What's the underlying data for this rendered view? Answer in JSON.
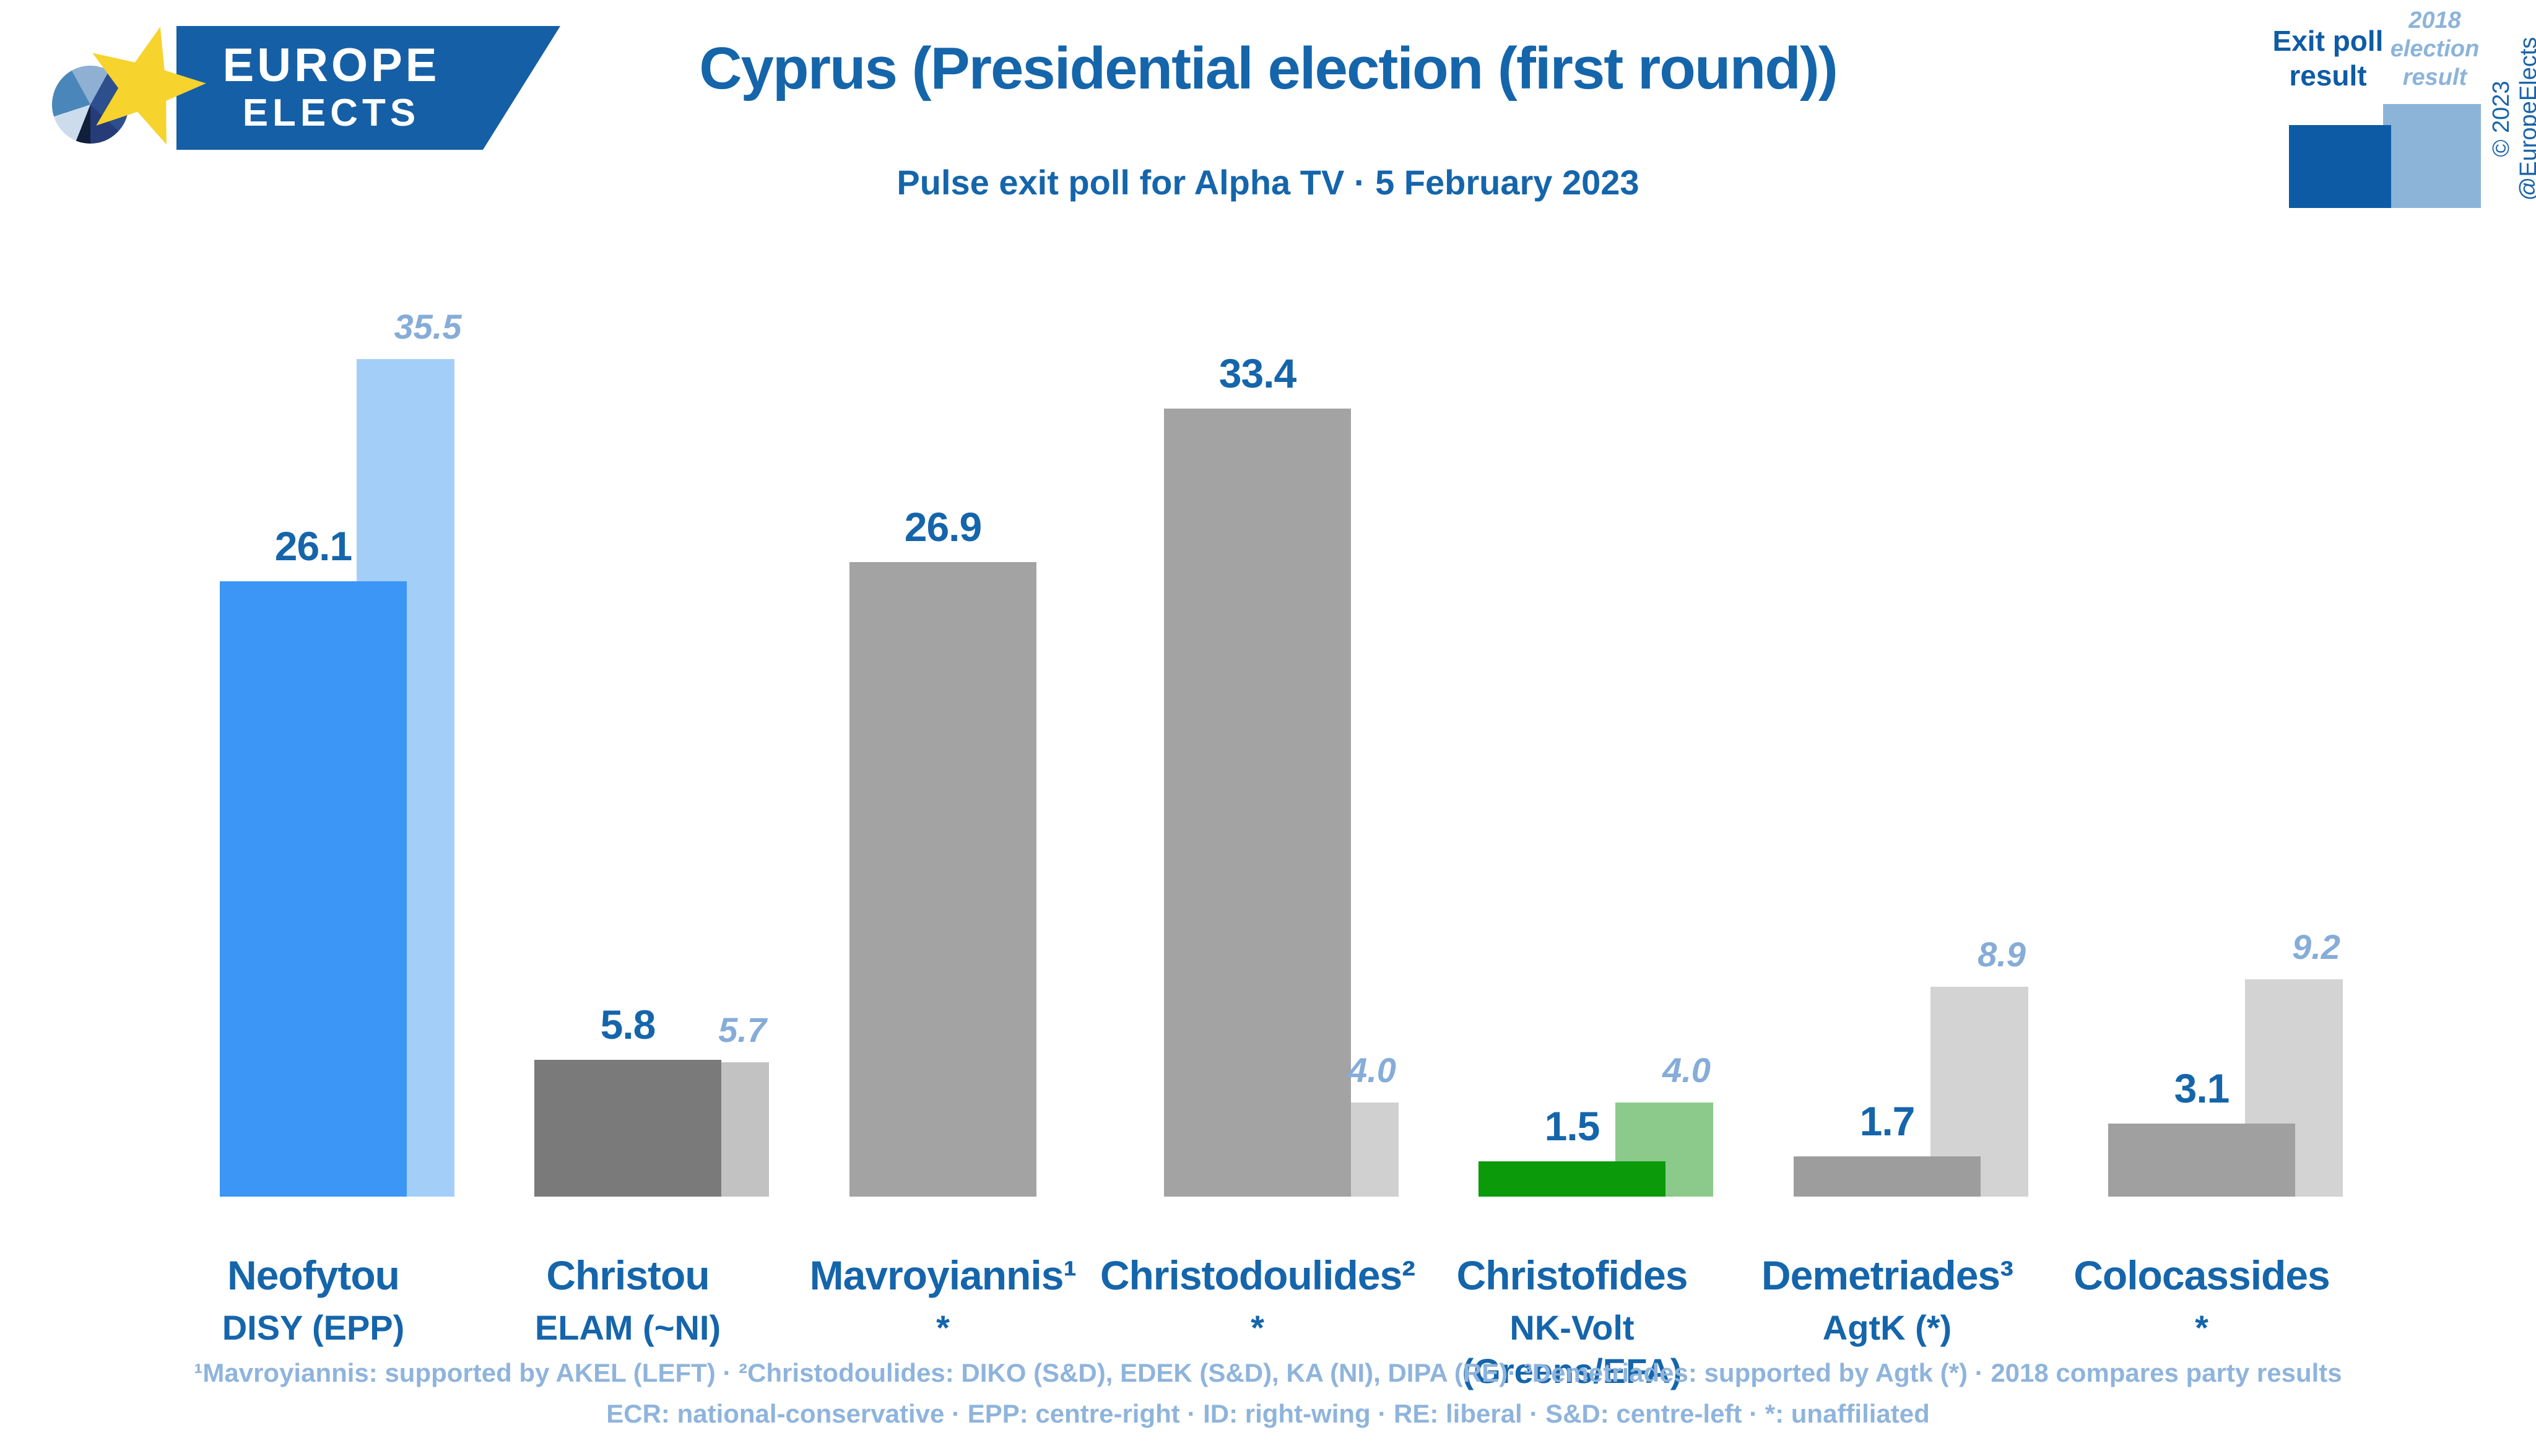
{
  "logo": {
    "name_line1": "EUROPE",
    "name_line2": "ELECTS"
  },
  "header": {
    "title": "Cyprus (Presidential election (first round))",
    "subtitle": "Pulse exit poll for Alpha TV · 5 February 2023"
  },
  "legend": {
    "exit_label": "Exit poll result",
    "previous_label": "2018 election result",
    "exit_color": "#0d5ba4",
    "previous_color": "#8cb4d9"
  },
  "copyright": "© 2023 @EuropeElects",
  "footnotes": {
    "line1": "¹Mavroyiannis: supported by AKEL (LEFT) · ²Christodoulides: DIKO (S&D), EDEK (S&D), KA (NI), DIPA (RE)· ³Demetriades: supported by Agtk (*) · 2018 compares party results",
    "line2": "ECR: national-conservative · EPP: centre-right · ID: right-wing · RE: liberal · S&D: centre-left · *: unaffiliated"
  },
  "chart_data": {
    "type": "bar",
    "title": "Cyprus (Presidential election (first round))",
    "subtitle": "Pulse exit poll for Alpha TV · 5 February 2023",
    "unit": "%",
    "ylim": [
      0,
      38
    ],
    "grid": false,
    "legend_position": "top-right",
    "series": [
      {
        "name": "Exit poll result"
      },
      {
        "name": "2018 election result"
      }
    ],
    "groups": [
      {
        "candidate": "Neofytou",
        "party": "DISY (EPP)",
        "exit": "26.1",
        "previous": "35.5",
        "exit_color": "#3b96f5",
        "previous_color": "#a3cef8"
      },
      {
        "candidate": "Christou",
        "party": "ELAM (~NI)",
        "exit": "5.8",
        "previous": "5.7",
        "exit_color": "#7a7a7a",
        "previous_color": "#c2c2c2"
      },
      {
        "candidate": "Mavroyiannis¹",
        "party": "*",
        "exit": "26.9",
        "previous": null,
        "exit_color": "#a3a3a3",
        "previous_color": null
      },
      {
        "candidate": "Christodoulides²",
        "party": "*",
        "exit": "33.4",
        "previous": "4.0",
        "exit_color": "#a3a3a3",
        "previous_color": "#d0d0d0"
      },
      {
        "candidate": "Christofides",
        "party": "NK-Volt (Greens/EFA)",
        "exit": "1.5",
        "previous": "4.0",
        "exit_color": "#0a9a0a",
        "previous_color": "#8cca8c"
      },
      {
        "candidate": "Demetriades³",
        "party": "AgtK (*)",
        "exit": "1.7",
        "previous": "8.9",
        "exit_color": "#9d9d9d",
        "previous_color": "#d3d3d3"
      },
      {
        "candidate": "Colocassides",
        "party": "*",
        "exit": "3.1",
        "previous": "9.2",
        "exit_color": "#a0a0a0",
        "previous_color": "#d3d3d3"
      }
    ]
  }
}
